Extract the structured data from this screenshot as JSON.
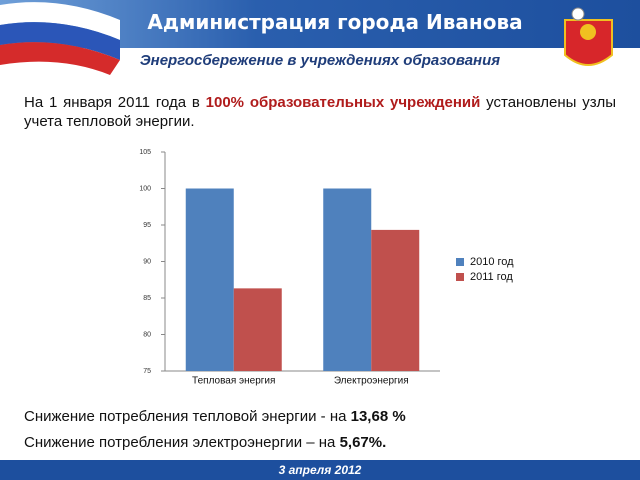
{
  "header": {
    "title": "Администрация города Иванова",
    "subtitle": "Энергосбережение в учреждениях образования"
  },
  "intro": {
    "parts": [
      "На 1 января 2011 года в ",
      "100% образовательных учреждений",
      " установлены узлы учета тепловой энергии."
    ]
  },
  "chart_data": {
    "type": "bar",
    "categories": [
      "Тепловая энергия",
      "Электроэнергия"
    ],
    "series": [
      {
        "name": "2010 год",
        "color": "#4f81bd",
        "values": [
          100,
          100
        ]
      },
      {
        "name": "2011 год",
        "color": "#c0504d",
        "values": [
          86.32,
          94.33
        ]
      }
    ],
    "ylim": [
      75,
      105
    ],
    "yticks": [
      75,
      80,
      85,
      90,
      95,
      100,
      105
    ],
    "grid": false,
    "legend": "right"
  },
  "summary": [
    {
      "text": "Снижение потребления тепловой энергии - на ",
      "value": "13,68 %"
    },
    {
      "text": "Снижение потребления электроэнергии – на ",
      "value": "5,67%."
    }
  ],
  "footer": {
    "date": "3 апреля 2012"
  }
}
